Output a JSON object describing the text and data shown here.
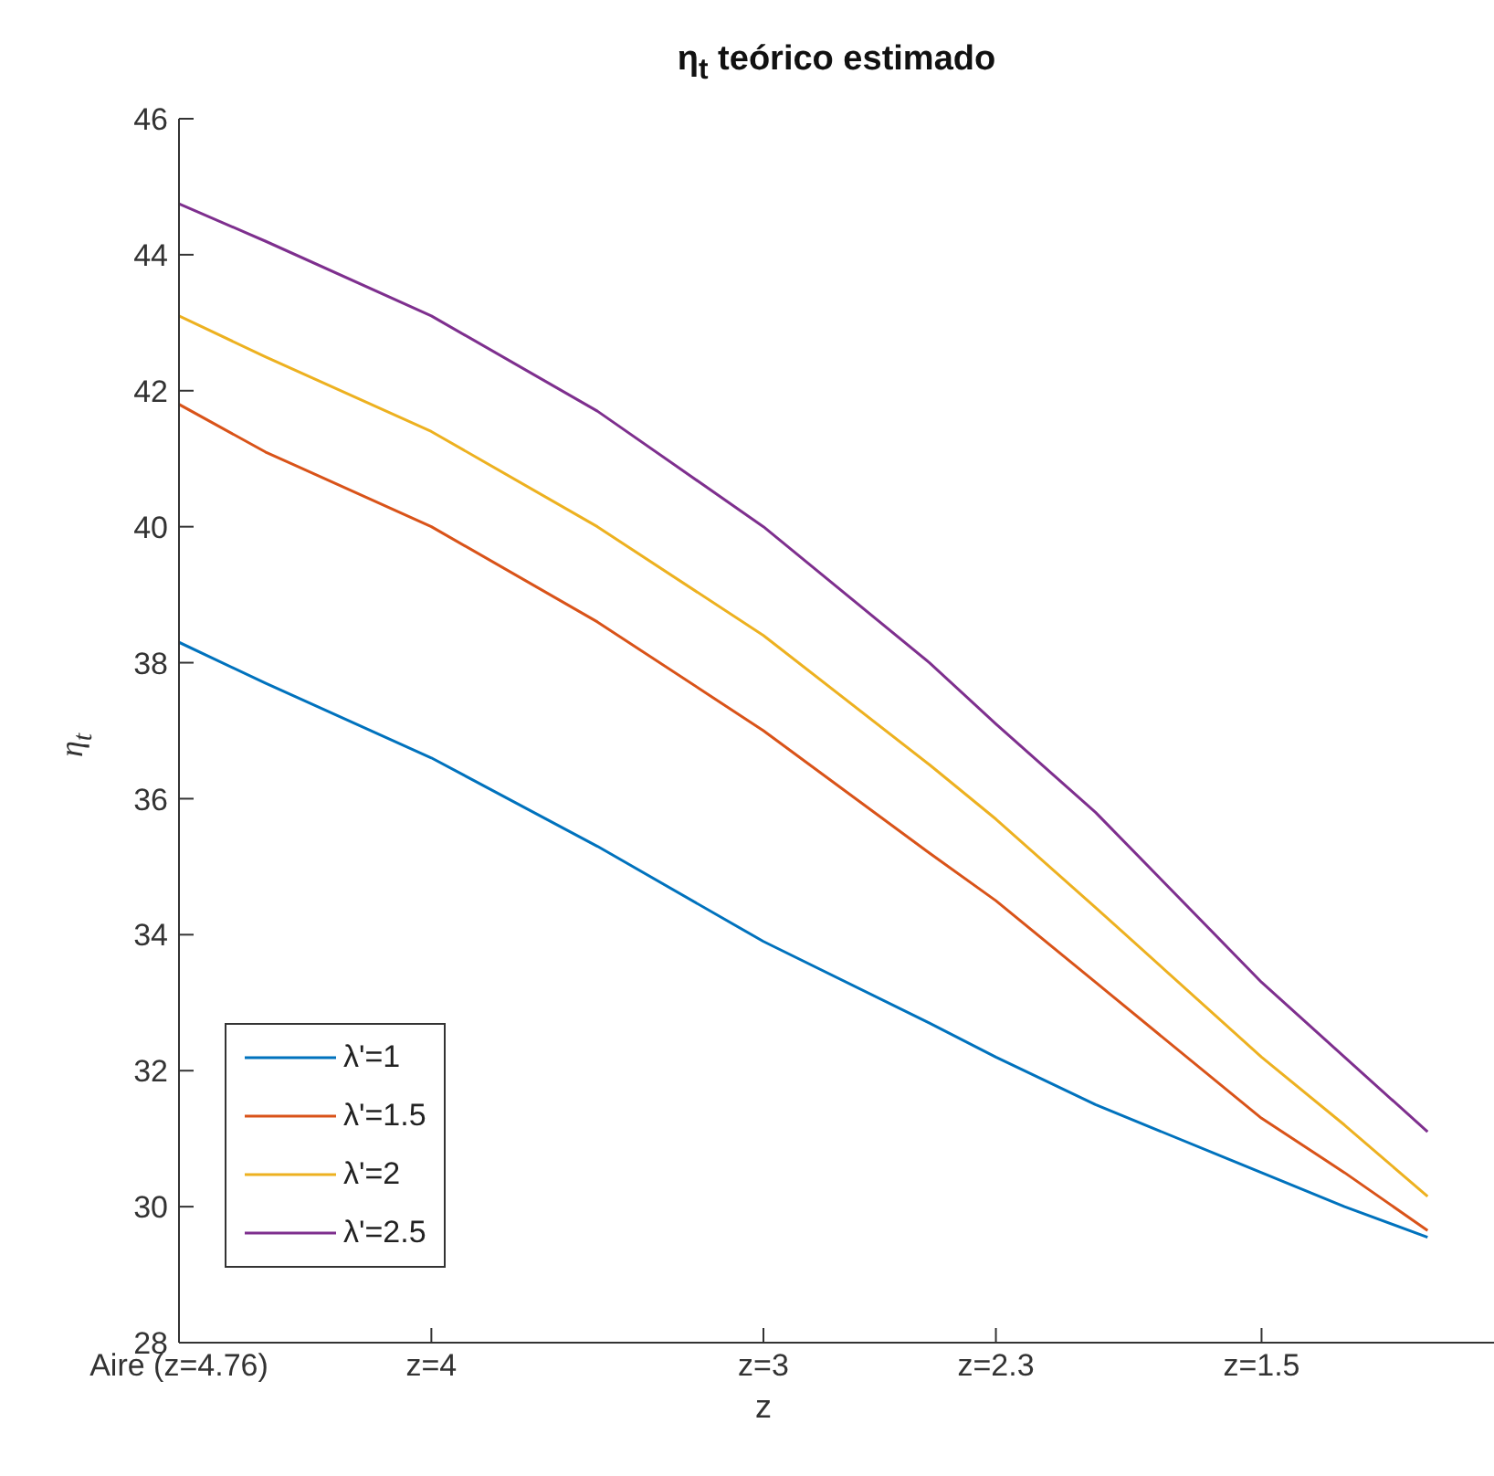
{
  "chart_data": {
    "type": "line",
    "title": "η$_{t}$ teórico estimado",
    "xlabel": "z",
    "ylabel": "η$_{t}$",
    "x": [
      4.76,
      4.5,
      4,
      3.5,
      3,
      2.5,
      2.3,
      2,
      1.5,
      1.25,
      1
    ],
    "series": [
      {
        "name": "λ'=1",
        "color": "#0072bd",
        "values": [
          38.3,
          37.7,
          36.6,
          35.3,
          33.9,
          32.7,
          32.2,
          31.5,
          30.5,
          30.0,
          29.55
        ]
      },
      {
        "name": "λ'=1.5",
        "color": "#d95319",
        "values": [
          41.8,
          41.1,
          40.0,
          38.6,
          37.0,
          35.2,
          34.5,
          33.3,
          31.3,
          30.5,
          29.65
        ]
      },
      {
        "name": "λ'=2",
        "color": "#edb120",
        "values": [
          43.1,
          42.5,
          41.4,
          40.0,
          38.4,
          36.5,
          35.7,
          34.4,
          32.2,
          31.2,
          30.15
        ]
      },
      {
        "name": "λ'=2.5",
        "color": "#7e2f8e",
        "values": [
          44.75,
          44.2,
          43.1,
          41.7,
          40.0,
          38.0,
          37.1,
          35.8,
          33.3,
          32.2,
          31.1
        ]
      }
    ],
    "xlim": [
      4.76,
      0.8
    ],
    "xticks": [
      {
        "value": 4.76,
        "label": "Aire (z=4.76)"
      },
      {
        "value": 4,
        "label": "z=4"
      },
      {
        "value": 3,
        "label": "z=3"
      },
      {
        "value": 2.3,
        "label": "z=2.3"
      },
      {
        "value": 1.5,
        "label": "z=1.5"
      }
    ],
    "ylim": [
      28,
      46
    ],
    "yticks": [
      28,
      30,
      32,
      34,
      36,
      38,
      40,
      42,
      44,
      46
    ],
    "grid": false,
    "legend": "bottom left",
    "marker": "none",
    "line_style": "solid"
  }
}
